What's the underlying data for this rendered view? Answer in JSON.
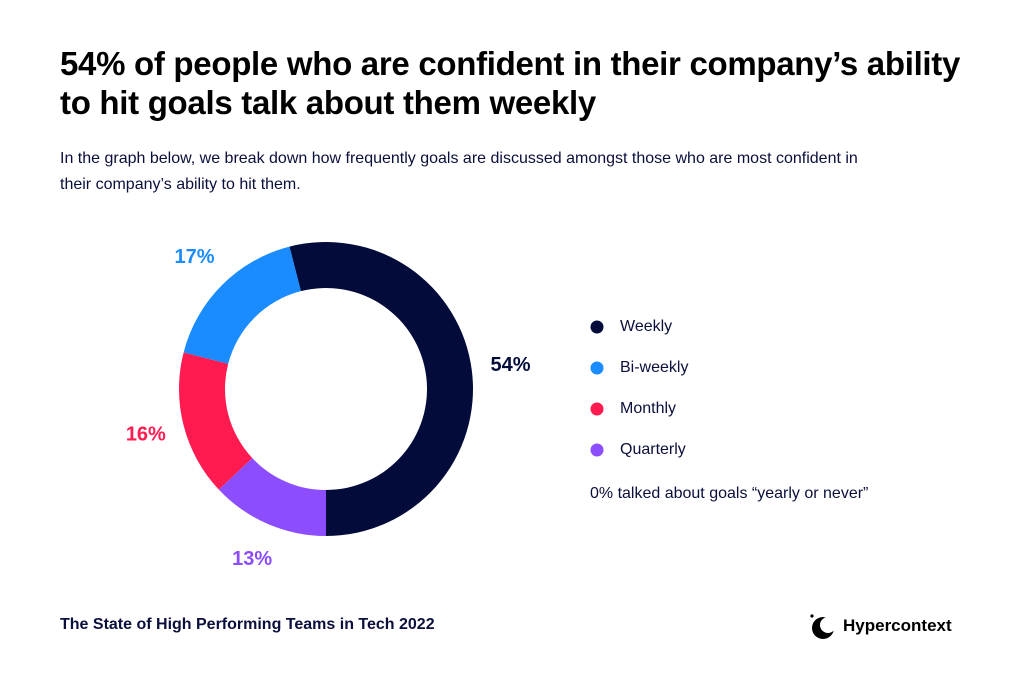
{
  "chart_data": {
    "type": "pie",
    "title": "54% of people who are confident in their company’s ability to hit goals talk about them weekly",
    "subtitle": "In the graph below, we break down how frequently goals are discussed amongst those who are most confident in their company’s ability to hit them.",
    "categories": [
      "Weekly",
      "Bi-weekly",
      "Monthly",
      "Quarterly"
    ],
    "values": [
      54,
      17,
      16,
      13
    ],
    "value_labels": [
      "54%",
      "17%",
      "16%",
      "13%"
    ],
    "colors": [
      "#030b3a",
      "#1a8cff",
      "#ff1a4f",
      "#8c4dff"
    ],
    "donut": true,
    "annotation": "0% talked about goals “yearly or never”"
  },
  "footer": {
    "source": "The State of High Performing Teams in Tech 2022",
    "brand": "Hypercontext"
  }
}
